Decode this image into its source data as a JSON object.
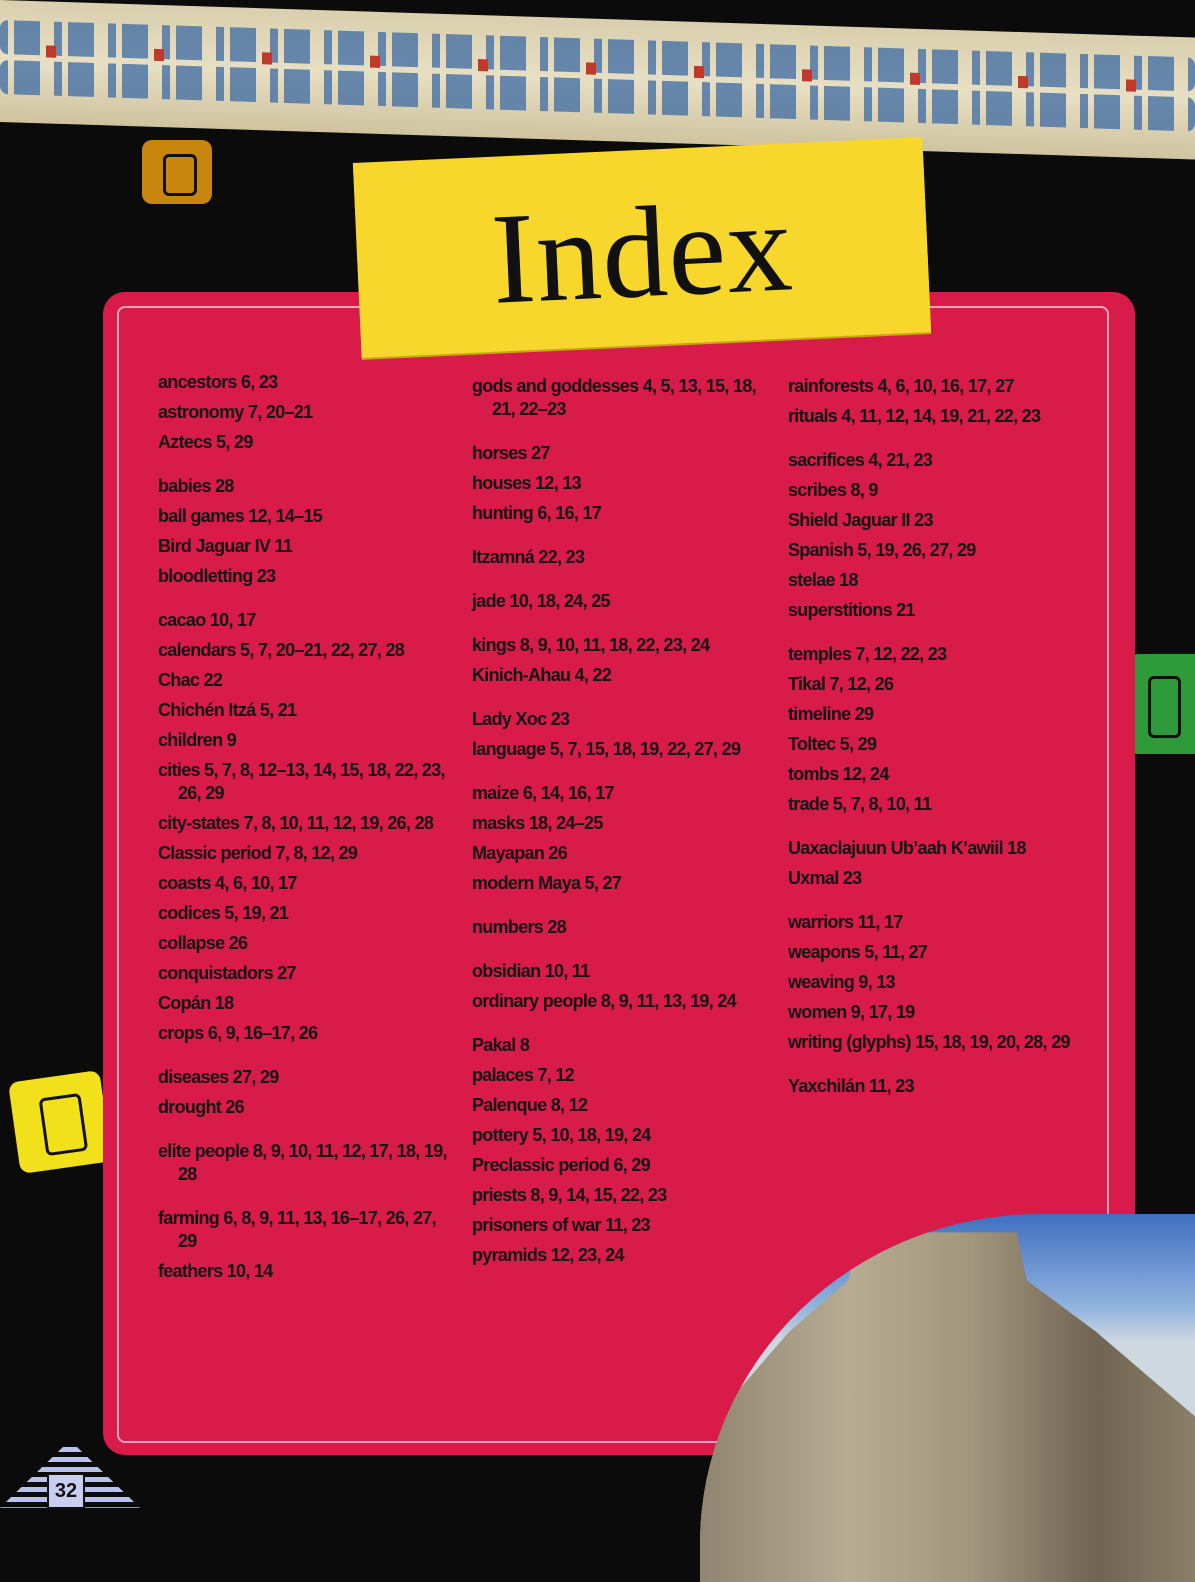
{
  "title": "Index",
  "page_number": "32",
  "colors": {
    "panel": "#d81b48",
    "title_box": "#f7d72b",
    "background": "#0b0b0b"
  },
  "columns": [
    [
      [
        "ancestors 6, 23",
        "astronomy 7, 20–21",
        "Aztecs 5, 29"
      ],
      [
        "babies 28",
        "ball games 12, 14–15",
        "Bird Jaguar IV 11",
        "bloodletting 23"
      ],
      [
        "cacao 10, 17",
        "calendars 5, 7, 20–21, 22, 27, 28",
        "Chac 22",
        "Chichén Itzá 5, 21",
        "children 9",
        "cities 5, 7, 8, 12–13, 14, 15, 18, 22, 23, 26, 29",
        "city-states 7, 8, 10, 11, 12, 19, 26, 28",
        "Classic period 7, 8, 12, 29",
        "coasts 4, 6, 10, 17",
        "codices 5, 19, 21",
        "collapse 26",
        "conquistadors 27",
        "Copán 18",
        "crops 6, 9, 16–17, 26"
      ],
      [
        "diseases 27, 29",
        "drought 26"
      ],
      [
        "elite people 8, 9, 10, 11, 12, 17, 18, 19, 28"
      ],
      [
        "farming 6, 8, 9, 11, 13, 16–17, 26, 27, 29",
        "feathers 10, 14"
      ]
    ],
    [
      [
        "gods and goddesses 4, 5, 13, 15, 18, 21, 22–23"
      ],
      [
        "horses 27",
        "houses 12, 13",
        "hunting 6, 16, 17"
      ],
      [
        "Itzamná 22, 23"
      ],
      [
        "jade 10, 18, 24, 25"
      ],
      [
        "kings 8, 9, 10, 11, 18, 22, 23, 24",
        "Kinich-Ahau 4, 22"
      ],
      [
        "Lady Xoc 23",
        "language 5, 7, 15, 18, 19, 22, 27, 29"
      ],
      [
        "maize 6, 14, 16, 17",
        "masks 18, 24–25",
        "Mayapan 26",
        "modern Maya 5, 27"
      ],
      [
        "numbers 28"
      ],
      [
        "obsidian 10, 11",
        "ordinary people 8, 9, 11, 13, 19, 24"
      ],
      [
        "Pakal 8",
        "palaces 7, 12",
        "Palenque 8, 12",
        "pottery 5, 10, 18, 19, 24",
        "Preclassic period 6, 29",
        "priests 8, 9, 14, 15, 22, 23",
        "prisoners of war 11, 23",
        "pyramids 12, 23, 24"
      ]
    ],
    [
      [
        "rainforests 4, 6, 10, 16, 17, 27",
        "rituals 4, 11, 12, 14, 19, 21, 22, 23"
      ],
      [
        "sacrifices 4, 21, 23",
        "scribes 8, 9",
        "Shield Jaguar II 23",
        "Spanish 5, 19, 26, 27, 29",
        "stelae 18",
        "superstitions 21"
      ],
      [
        "temples 7, 12, 22, 23",
        "Tikal 7, 12, 26",
        "timeline 29",
        "Toltec 5, 29",
        "tombs 12, 24",
        "trade 5, 7, 8, 10, 11"
      ],
      [
        "Uaxaclajuun Ub’aah K’awiil 18",
        "Uxmal 23"
      ],
      [
        "warriors 11, 17",
        "weapons 5, 11, 27",
        "weaving 9, 13",
        "women 9, 17, 19",
        "writing (glyphs) 15, 18, 19, 20, 28, 29"
      ],
      [
        "Yaxchilán 11, 23"
      ]
    ]
  ]
}
